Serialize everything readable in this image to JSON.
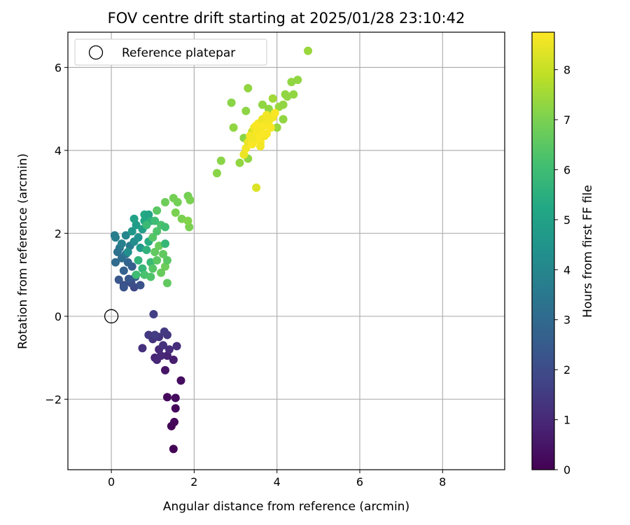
{
  "chart_data": {
    "type": "scatter",
    "title": "FOV centre drift starting at 2025/01/28 23:10:42",
    "xlabel": "Angular distance from reference (arcmin)",
    "ylabel": "Rotation from reference (arcmin)",
    "xlim": [
      -1.05,
      9.5
    ],
    "ylim": [
      -3.7,
      6.85
    ],
    "xticks": [
      0,
      2,
      4,
      6,
      8
    ],
    "yticks": [
      -2,
      0,
      2,
      4,
      6
    ],
    "grid": true,
    "legend": {
      "position": "upper-left",
      "entries": [
        "Reference platepar"
      ]
    },
    "reference_point": {
      "x": 0,
      "y": 0,
      "label": "Reference platepar"
    },
    "colorbar": {
      "label": "Hours from first FF file",
      "range": [
        0,
        8.75
      ],
      "ticks": [
        0,
        1,
        2,
        3,
        4,
        5,
        6,
        7,
        8
      ],
      "colormap": "viridis"
    },
    "points": [
      {
        "x": 1.5,
        "y": -3.2,
        "c": 0.02
      },
      {
        "x": 1.45,
        "y": -2.65,
        "c": 0.08
      },
      {
        "x": 1.52,
        "y": -2.55,
        "c": 0.12
      },
      {
        "x": 1.55,
        "y": -2.22,
        "c": 0.15
      },
      {
        "x": 1.35,
        "y": -1.95,
        "c": 0.2
      },
      {
        "x": 1.55,
        "y": -1.97,
        "c": 0.25
      },
      {
        "x": 1.68,
        "y": -1.55,
        "c": 0.3
      },
      {
        "x": 1.3,
        "y": -1.3,
        "c": 0.5
      },
      {
        "x": 1.5,
        "y": -1.05,
        "c": 0.7
      },
      {
        "x": 1.35,
        "y": -0.95,
        "c": 0.85
      },
      {
        "x": 1.05,
        "y": -1.0,
        "c": 0.9
      },
      {
        "x": 1.1,
        "y": -1.05,
        "c": 0.95
      },
      {
        "x": 1.2,
        "y": -0.95,
        "c": 1.0
      },
      {
        "x": 1.15,
        "y": -0.8,
        "c": 1.05
      },
      {
        "x": 1.4,
        "y": -0.8,
        "c": 1.1
      },
      {
        "x": 1.58,
        "y": -0.72,
        "c": 1.15
      },
      {
        "x": 0.75,
        "y": -0.77,
        "c": 1.2
      },
      {
        "x": 1.25,
        "y": -0.7,
        "c": 1.25
      },
      {
        "x": 1.0,
        "y": -0.55,
        "c": 1.3
      },
      {
        "x": 1.15,
        "y": -0.5,
        "c": 1.35
      },
      {
        "x": 1.35,
        "y": -0.45,
        "c": 1.4
      },
      {
        "x": 0.9,
        "y": -0.45,
        "c": 1.45
      },
      {
        "x": 1.28,
        "y": -0.37,
        "c": 1.5
      },
      {
        "x": 1.05,
        "y": -0.45,
        "c": 1.55
      },
      {
        "x": 1.02,
        "y": 0.05,
        "c": 1.6
      },
      {
        "x": 0.55,
        "y": 0.7,
        "c": 1.9
      },
      {
        "x": 0.3,
        "y": 0.75,
        "c": 2.0
      },
      {
        "x": 0.48,
        "y": 0.8,
        "c": 2.1
      },
      {
        "x": 0.7,
        "y": 0.75,
        "c": 2.2
      },
      {
        "x": 0.3,
        "y": 0.7,
        "c": 2.3
      },
      {
        "x": 0.18,
        "y": 0.88,
        "c": 2.35
      },
      {
        "x": 0.42,
        "y": 0.9,
        "c": 2.4
      },
      {
        "x": 0.58,
        "y": 0.95,
        "c": 2.5
      },
      {
        "x": 0.5,
        "y": 1.2,
        "c": 2.6
      },
      {
        "x": 0.3,
        "y": 1.1,
        "c": 2.7
      },
      {
        "x": 0.4,
        "y": 1.3,
        "c": 2.8
      },
      {
        "x": 0.1,
        "y": 1.3,
        "c": 3.0
      },
      {
        "x": 0.25,
        "y": 1.4,
        "c": 3.1
      },
      {
        "x": 0.15,
        "y": 1.55,
        "c": 3.2
      },
      {
        "x": 0.35,
        "y": 1.5,
        "c": 3.3
      },
      {
        "x": 0.2,
        "y": 1.65,
        "c": 3.4
      },
      {
        "x": 0.45,
        "y": 1.7,
        "c": 3.6
      },
      {
        "x": 0.25,
        "y": 1.75,
        "c": 3.8
      },
      {
        "x": 0.08,
        "y": 1.95,
        "c": 3.7
      },
      {
        "x": 0.1,
        "y": 1.9,
        "c": 3.75
      },
      {
        "x": 0.35,
        "y": 1.95,
        "c": 4.0
      },
      {
        "x": 0.55,
        "y": 1.8,
        "c": 4.2
      },
      {
        "x": 0.4,
        "y": 1.55,
        "c": 4.3
      },
      {
        "x": 0.65,
        "y": 1.9,
        "c": 4.4
      },
      {
        "x": 0.5,
        "y": 2.05,
        "c": 4.6
      },
      {
        "x": 0.6,
        "y": 2.2,
        "c": 4.8
      },
      {
        "x": 0.75,
        "y": 2.1,
        "c": 4.9
      },
      {
        "x": 0.55,
        "y": 2.35,
        "c": 5.0
      },
      {
        "x": 0.8,
        "y": 2.3,
        "c": 5.2
      },
      {
        "x": 0.8,
        "y": 2.45,
        "c": 5.3
      },
      {
        "x": 0.9,
        "y": 2.45,
        "c": 5.1
      },
      {
        "x": 0.95,
        "y": 2.3,
        "c": 5.5
      },
      {
        "x": 0.7,
        "y": 1.65,
        "c": 4.7
      },
      {
        "x": 0.9,
        "y": 1.8,
        "c": 5.4
      },
      {
        "x": 0.85,
        "y": 1.6,
        "c": 5.6
      },
      {
        "x": 0.65,
        "y": 1.35,
        "c": 5.7
      },
      {
        "x": 0.75,
        "y": 1.15,
        "c": 5.8
      },
      {
        "x": 0.95,
        "y": 1.3,
        "c": 5.9
      },
      {
        "x": 0.6,
        "y": 1.0,
        "c": 6.0
      },
      {
        "x": 0.8,
        "y": 1.0,
        "c": 6.2
      },
      {
        "x": 0.95,
        "y": 0.95,
        "c": 6.3
      },
      {
        "x": 1.0,
        "y": 1.15,
        "c": 6.4
      },
      {
        "x": 1.1,
        "y": 1.35,
        "c": 6.5
      },
      {
        "x": 1.05,
        "y": 1.55,
        "c": 6.6
      },
      {
        "x": 1.15,
        "y": 1.7,
        "c": 6.7
      },
      {
        "x": 1.25,
        "y": 1.5,
        "c": 6.6
      },
      {
        "x": 1.3,
        "y": 1.2,
        "c": 6.8
      },
      {
        "x": 1.2,
        "y": 1.05,
        "c": 6.7
      },
      {
        "x": 1.35,
        "y": 1.35,
        "c": 6.5
      },
      {
        "x": 1.0,
        "y": 1.9,
        "c": 6.4
      },
      {
        "x": 1.1,
        "y": 2.05,
        "c": 6.3
      },
      {
        "x": 1.2,
        "y": 2.2,
        "c": 6.2
      },
      {
        "x": 1.3,
        "y": 2.15,
        "c": 6.1
      },
      {
        "x": 1.05,
        "y": 2.3,
        "c": 6.0
      },
      {
        "x": 0.85,
        "y": 2.2,
        "c": 5.9
      },
      {
        "x": 1.1,
        "y": 2.55,
        "c": 6.5
      },
      {
        "x": 1.3,
        "y": 1.75,
        "c": 5.8
      },
      {
        "x": 1.35,
        "y": 0.8,
        "c": 6.6
      },
      {
        "x": 1.3,
        "y": 2.75,
        "c": 6.8
      },
      {
        "x": 1.5,
        "y": 2.85,
        "c": 6.9
      },
      {
        "x": 1.55,
        "y": 2.5,
        "c": 7.0
      },
      {
        "x": 1.6,
        "y": 2.75,
        "c": 6.9
      },
      {
        "x": 1.7,
        "y": 2.35,
        "c": 7.0
      },
      {
        "x": 1.85,
        "y": 2.9,
        "c": 6.9
      },
      {
        "x": 1.88,
        "y": 2.15,
        "c": 7.0
      },
      {
        "x": 1.9,
        "y": 2.8,
        "c": 7.0
      },
      {
        "x": 1.85,
        "y": 2.3,
        "c": 7.1
      },
      {
        "x": 2.55,
        "y": 3.45,
        "c": 7.2
      },
      {
        "x": 2.65,
        "y": 3.75,
        "c": 7.2
      },
      {
        "x": 2.95,
        "y": 4.55,
        "c": 7.3
      },
      {
        "x": 3.1,
        "y": 3.7,
        "c": 7.3
      },
      {
        "x": 3.2,
        "y": 4.3,
        "c": 7.2
      },
      {
        "x": 3.3,
        "y": 3.8,
        "c": 7.3
      },
      {
        "x": 2.9,
        "y": 5.15,
        "c": 7.2
      },
      {
        "x": 3.25,
        "y": 4.95,
        "c": 7.25
      },
      {
        "x": 3.3,
        "y": 5.5,
        "c": 7.3
      },
      {
        "x": 3.65,
        "y": 5.1,
        "c": 7.3
      },
      {
        "x": 3.85,
        "y": 4.85,
        "c": 7.4
      },
      {
        "x": 3.8,
        "y": 5.0,
        "c": 7.3
      },
      {
        "x": 4.2,
        "y": 5.35,
        "c": 7.3
      },
      {
        "x": 4.25,
        "y": 5.3,
        "c": 7.3
      },
      {
        "x": 4.4,
        "y": 5.35,
        "c": 7.3
      },
      {
        "x": 4.35,
        "y": 5.65,
        "c": 7.3
      },
      {
        "x": 4.5,
        "y": 5.7,
        "c": 7.3
      },
      {
        "x": 4.05,
        "y": 5.05,
        "c": 7.4
      },
      {
        "x": 4.15,
        "y": 5.1,
        "c": 7.3
      },
      {
        "x": 4.0,
        "y": 4.55,
        "c": 7.4
      },
      {
        "x": 4.15,
        "y": 4.75,
        "c": 7.3
      },
      {
        "x": 3.9,
        "y": 5.25,
        "c": 7.5
      },
      {
        "x": 4.75,
        "y": 6.4,
        "c": 7.4
      },
      {
        "x": 3.4,
        "y": 4.45,
        "c": 8.0
      },
      {
        "x": 3.5,
        "y": 3.1,
        "c": 8.3
      },
      {
        "x": 3.2,
        "y": 3.9,
        "c": 8.5
      },
      {
        "x": 3.25,
        "y": 4.05,
        "c": 8.6
      },
      {
        "x": 3.3,
        "y": 4.2,
        "c": 8.5
      },
      {
        "x": 3.35,
        "y": 4.35,
        "c": 8.6
      },
      {
        "x": 3.4,
        "y": 4.15,
        "c": 8.7
      },
      {
        "x": 3.45,
        "y": 4.55,
        "c": 8.6
      },
      {
        "x": 3.5,
        "y": 4.4,
        "c": 8.7
      },
      {
        "x": 3.55,
        "y": 4.65,
        "c": 8.6
      },
      {
        "x": 3.55,
        "y": 4.25,
        "c": 8.7
      },
      {
        "x": 3.6,
        "y": 4.5,
        "c": 8.6
      },
      {
        "x": 3.6,
        "y": 4.2,
        "c": 8.7
      },
      {
        "x": 3.65,
        "y": 4.75,
        "c": 8.5
      },
      {
        "x": 3.7,
        "y": 4.35,
        "c": 8.6
      },
      {
        "x": 3.7,
        "y": 4.6,
        "c": 8.7
      },
      {
        "x": 3.75,
        "y": 4.85,
        "c": 8.6
      },
      {
        "x": 3.75,
        "y": 4.4,
        "c": 8.7
      },
      {
        "x": 3.8,
        "y": 4.7,
        "c": 8.6
      },
      {
        "x": 3.85,
        "y": 4.55,
        "c": 8.7
      },
      {
        "x": 3.9,
        "y": 4.8,
        "c": 8.6
      },
      {
        "x": 3.95,
        "y": 4.9,
        "c": 8.7
      },
      {
        "x": 3.6,
        "y": 4.1,
        "c": 8.6
      },
      {
        "x": 3.5,
        "y": 4.6,
        "c": 8.7
      },
      {
        "x": 3.65,
        "y": 4.4,
        "c": 8.7
      },
      {
        "x": 3.4,
        "y": 4.3,
        "c": 8.6
      }
    ]
  }
}
